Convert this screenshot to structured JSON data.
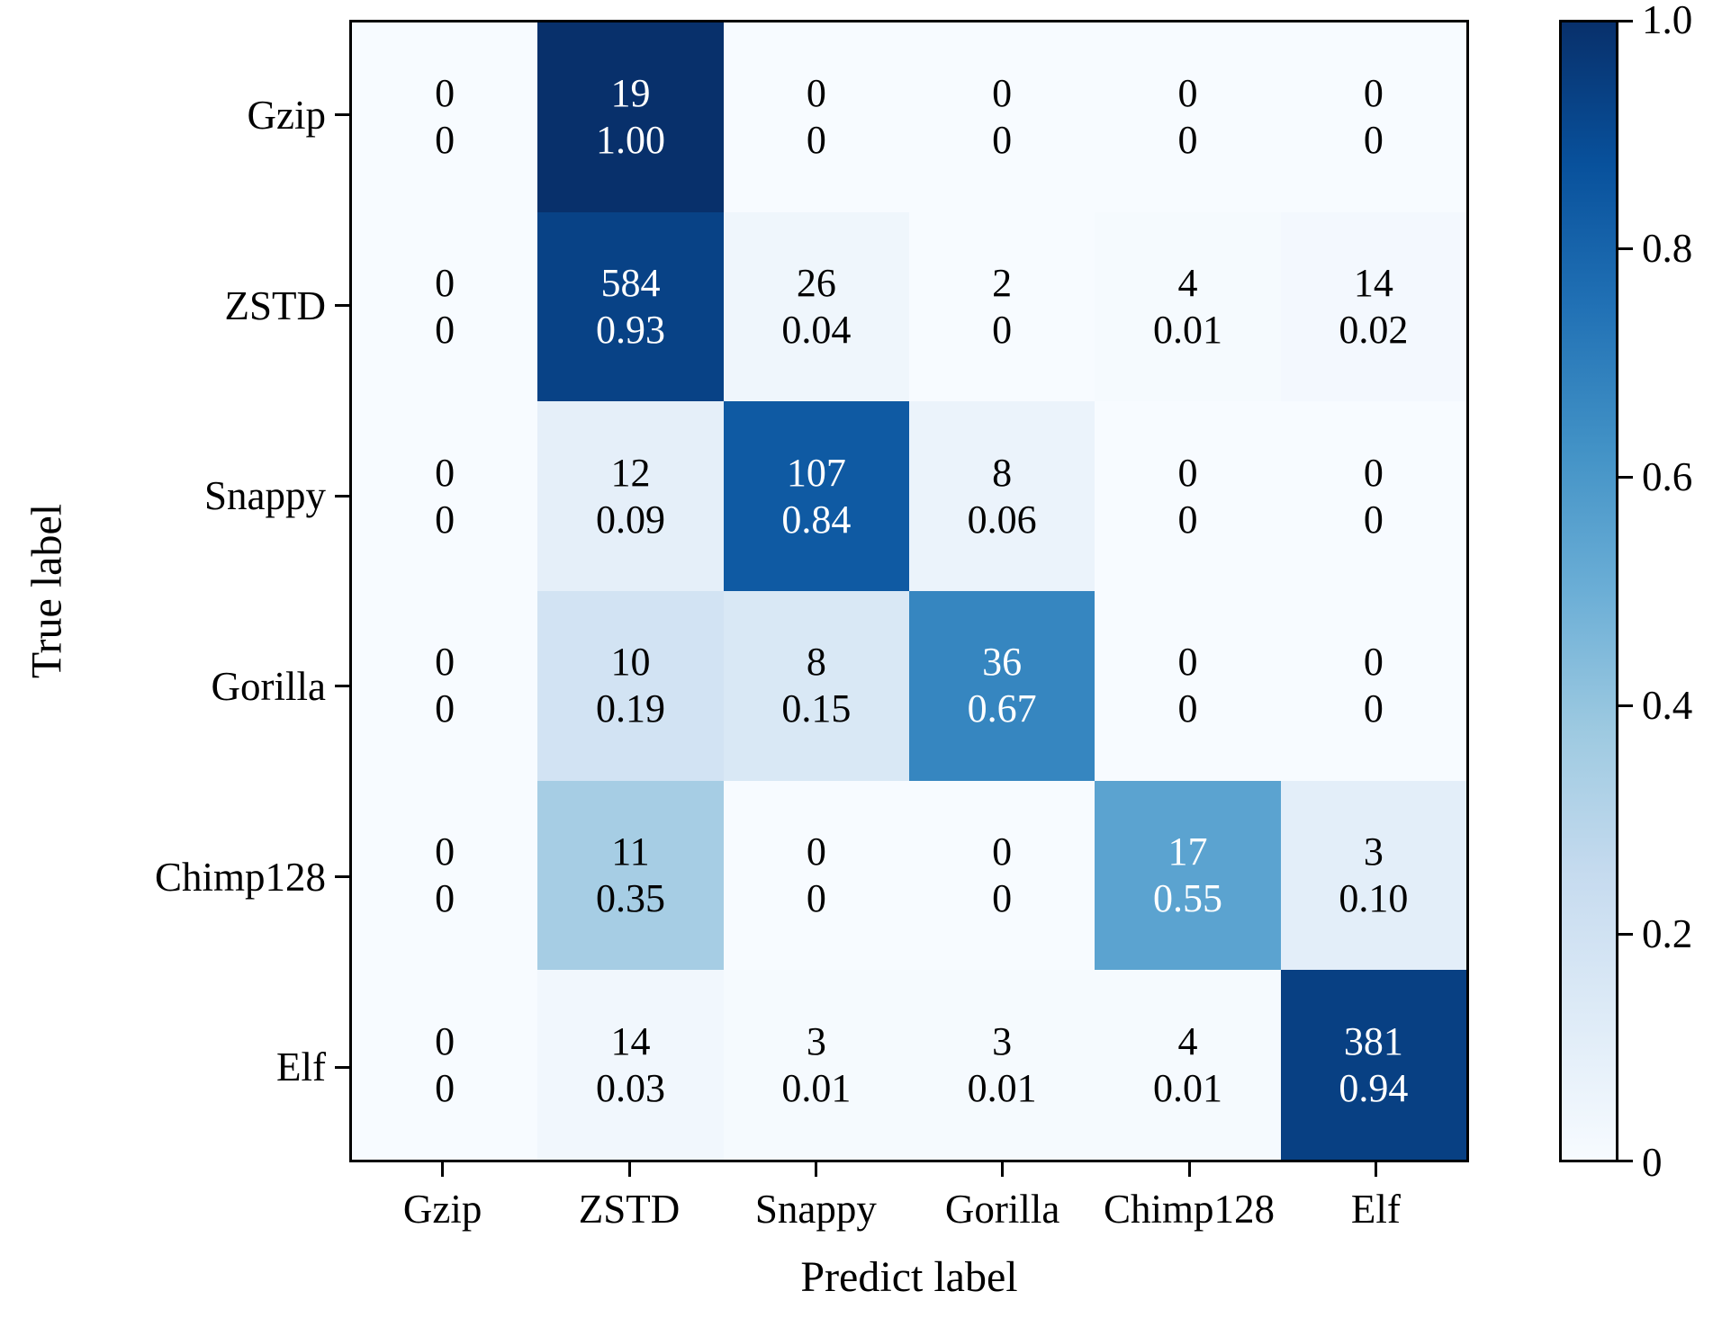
{
  "chart_data": {
    "type": "heatmap",
    "title": "",
    "xlabel": "Predict label",
    "ylabel": "True label",
    "categories": [
      "Gzip",
      "ZSTD",
      "Snappy",
      "Gorilla",
      "Chimp128",
      "Elf"
    ],
    "cell_value_format": "count over row-normalized fraction",
    "rows": [
      {
        "label": "Gzip",
        "cells": [
          [
            "0",
            "0",
            0
          ],
          [
            "19",
            "1.00",
            1.0
          ],
          [
            "0",
            "0",
            0
          ],
          [
            "0",
            "0",
            0
          ],
          [
            "0",
            "0",
            0
          ],
          [
            "0",
            "0",
            0
          ]
        ]
      },
      {
        "label": "ZSTD",
        "cells": [
          [
            "0",
            "0",
            0
          ],
          [
            "584",
            "0.93",
            0.93
          ],
          [
            "26",
            "0.04",
            0.04
          ],
          [
            "2",
            "0",
            0
          ],
          [
            "4",
            "0.01",
            0.01
          ],
          [
            "14",
            "0.02",
            0.02
          ]
        ]
      },
      {
        "label": "Snappy",
        "cells": [
          [
            "0",
            "0",
            0
          ],
          [
            "12",
            "0.09",
            0.09
          ],
          [
            "107",
            "0.84",
            0.84
          ],
          [
            "8",
            "0.06",
            0.06
          ],
          [
            "0",
            "0",
            0
          ],
          [
            "0",
            "0",
            0
          ]
        ]
      },
      {
        "label": "Gorilla",
        "cells": [
          [
            "0",
            "0",
            0
          ],
          [
            "10",
            "0.19",
            0.19
          ],
          [
            "8",
            "0.15",
            0.15
          ],
          [
            "36",
            "0.67",
            0.67
          ],
          [
            "0",
            "0",
            0
          ],
          [
            "0",
            "0",
            0
          ]
        ]
      },
      {
        "label": "Chimp128",
        "cells": [
          [
            "0",
            "0",
            0
          ],
          [
            "11",
            "0.35",
            0.35
          ],
          [
            "0",
            "0",
            0
          ],
          [
            "0",
            "0",
            0
          ],
          [
            "17",
            "0.55",
            0.55
          ],
          [
            "3",
            "0.10",
            0.1
          ]
        ]
      },
      {
        "label": "Elf",
        "cells": [
          [
            "0",
            "0",
            0
          ],
          [
            "14",
            "0.03",
            0.03
          ],
          [
            "3",
            "0.01",
            0.01
          ],
          [
            "3",
            "0.01",
            0.01
          ],
          [
            "4",
            "0.01",
            0.01
          ],
          [
            "381",
            "0.94",
            0.94
          ]
        ]
      }
    ],
    "colorbar": {
      "min": 0,
      "max": 1,
      "tick_values": [
        1.0,
        0.8,
        0.6,
        0.4,
        0.2,
        0
      ],
      "tick_labels": [
        "1.0",
        "0.8",
        "0.6",
        "0.4",
        "0.2",
        "0"
      ],
      "position": "right"
    },
    "colormap": {
      "name": "Blues",
      "stops": [
        [
          0.0,
          247,
          251,
          255
        ],
        [
          0.125,
          222,
          235,
          247
        ],
        [
          0.25,
          198,
          219,
          239
        ],
        [
          0.375,
          158,
          202,
          225
        ],
        [
          0.5,
          107,
          174,
          214
        ],
        [
          0.625,
          66,
          146,
          198
        ],
        [
          0.75,
          33,
          113,
          181
        ],
        [
          0.875,
          8,
          81,
          156
        ],
        [
          1.0,
          8,
          48,
          107
        ]
      ]
    },
    "text_color_threshold": 0.5,
    "text_color_light": "#ffffff",
    "text_color_dark": "#000000",
    "grid": false,
    "legend": "none"
  }
}
